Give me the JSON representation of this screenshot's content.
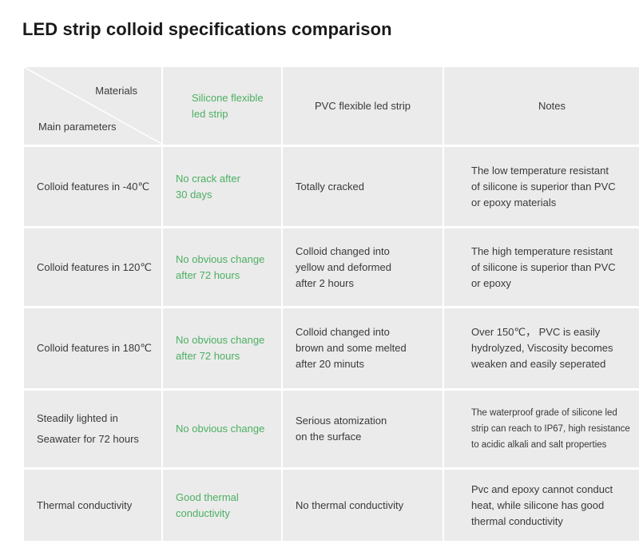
{
  "title": "LED strip colloid specifications comparison",
  "header": {
    "materials": "Materials",
    "main_parameters": "Main parameters",
    "silicone_line1": "Silicone flexible",
    "silicone_line2": "led strip",
    "pvc": "PVC flexible led strip",
    "notes": "Notes"
  },
  "rows": [
    {
      "param": [
        "Colloid features in -40℃"
      ],
      "silicone": [
        "No crack after",
        "30 days"
      ],
      "pvc": [
        "Totally cracked"
      ],
      "notes": [
        "The low temperature resistant",
        "of silicone is superior than PVC",
        "or epoxy materials"
      ]
    },
    {
      "param": [
        "Colloid features in 120℃"
      ],
      "silicone": [
        "No obvious change",
        "after 72 hours"
      ],
      "pvc": [
        "Colloid changed into",
        "yellow and deformed",
        "after 2 hours"
      ],
      "notes": [
        "The high temperature resistant",
        "of silicone is superior than  PVC",
        "or epoxy"
      ]
    },
    {
      "param": [
        "Colloid features in 180℃"
      ],
      "silicone": [
        "No obvious change",
        "after 72 hours"
      ],
      "pvc": [
        "Colloid changed into",
        "brown and some melted",
        "after 20 minuts"
      ],
      "notes": [
        "Over 150℃， PVC is easily",
        "hydrolyzed, Viscosity becomes",
        "weaken and easily seperated"
      ]
    },
    {
      "param": [
        "Steadily lighted in",
        "Seawater for 72 hours"
      ],
      "silicone": [
        "No obvious change"
      ],
      "pvc": [
        "Serious atomization",
        "on the surface"
      ],
      "notes": [
        "The waterproof grade of silicone led",
        "strip can reach to IP67, high resistance",
        "to acidic alkali and salt properties"
      ]
    },
    {
      "param": [
        "Thermal conductivity"
      ],
      "silicone": [
        "Good thermal",
        "conductivity"
      ],
      "pvc": [
        "No thermal conductivity"
      ],
      "notes": [
        "Pvc and epoxy cannot conduct",
        "heat, while silicone has good",
        "thermal conductivity"
      ]
    }
  ]
}
